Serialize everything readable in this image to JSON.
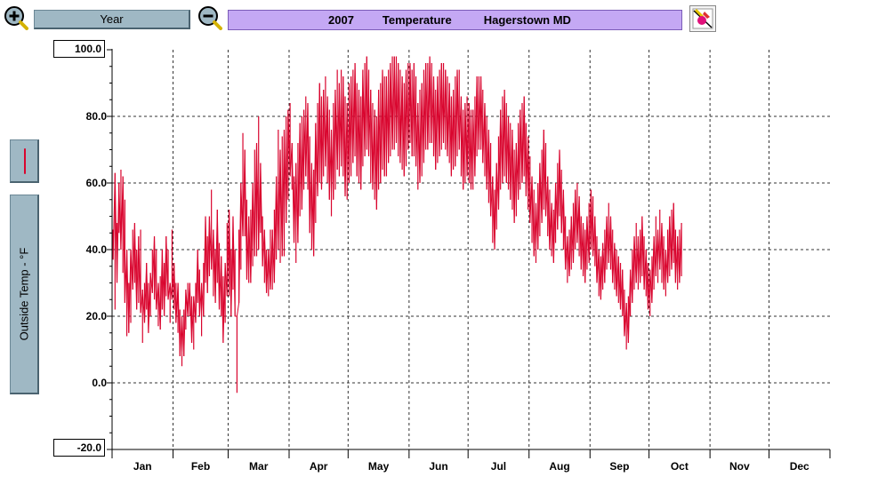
{
  "toolbar": {
    "range_label": "Year",
    "title_year": "2007",
    "title_metric": "Temperature",
    "title_location": "Hagerstown MD",
    "zoom_in_icon": "zoom-in-icon",
    "zoom_out_icon": "zoom-out-icon",
    "tool_icon": "graph-tool-icon"
  },
  "sidebar": {
    "axis_label": "Outside Temp - °F"
  },
  "colors": {
    "series": "#d9052e",
    "button_bg": "#9fb8c4",
    "title_bg": "#c4a8f4"
  },
  "chart_data": {
    "type": "line",
    "title": "2007 Temperature Hagerstown MD",
    "xlabel": "",
    "ylabel": "Outside Temp - °F",
    "ylim": [
      -20,
      100
    ],
    "ylim_labels": {
      "max": "100.0",
      "min": "-20.0"
    },
    "yticks": [
      "80.0",
      "60.0",
      "40.0",
      "20.0",
      "0.0"
    ],
    "ytick_values": [
      80,
      60,
      40,
      20,
      0
    ],
    "grid": true,
    "categories": [
      "Jan",
      "Feb",
      "Mar",
      "Apr",
      "May",
      "Jun",
      "Jul",
      "Aug",
      "Sep",
      "Oct",
      "Nov",
      "Dec"
    ],
    "series": [
      {
        "name": "",
        "daily_low": [
          37,
          22,
          30,
          45,
          40,
          33,
          24,
          14,
          15,
          18,
          28,
          30,
          22,
          24,
          21,
          12,
          18,
          22,
          15,
          20,
          27,
          25,
          22,
          17,
          16,
          22,
          20,
          26,
          25,
          18,
          25,
          22,
          18,
          15,
          8,
          5,
          8,
          16,
          20,
          20,
          12,
          10,
          18,
          24,
          20,
          14,
          20,
          30,
          27,
          32,
          34,
          26,
          24,
          30,
          22,
          20,
          12,
          18,
          26,
          26,
          20,
          28,
          20,
          -3,
          24,
          34,
          44,
          44,
          31,
          30,
          30,
          35,
          38,
          38,
          40,
          45,
          35,
          30,
          27,
          26,
          28,
          28,
          30,
          37,
          40,
          36,
          38,
          38,
          48,
          55,
          62,
          58,
          42,
          36,
          42,
          50,
          52,
          58,
          62,
          58,
          45,
          40,
          38,
          48,
          56,
          60,
          58,
          62,
          65,
          60,
          55,
          50,
          55,
          58,
          64,
          62,
          65,
          62,
          56,
          55,
          60,
          62,
          66,
          68,
          62,
          60,
          58,
          65,
          68,
          70,
          68,
          60,
          58,
          55,
          52,
          58,
          60,
          64,
          62,
          62,
          66,
          68,
          70,
          70,
          72,
          68,
          66,
          64,
          62,
          65,
          70,
          72,
          68,
          68,
          65,
          58,
          60,
          62,
          66,
          70,
          70,
          72,
          72,
          68,
          64,
          66,
          68,
          70,
          72,
          70,
          68,
          66,
          62,
          64,
          65,
          68,
          70,
          62,
          58,
          60,
          62,
          60,
          58,
          58,
          62,
          68,
          70,
          70,
          66,
          62,
          58,
          54,
          50,
          42,
          40,
          46,
          52,
          58,
          60,
          62,
          60,
          58,
          55,
          52,
          48,
          50,
          55,
          58,
          60,
          62,
          56,
          52,
          48,
          42,
          38,
          36,
          40,
          44,
          48,
          52,
          50,
          44,
          40,
          38,
          36,
          42,
          46,
          50,
          45,
          40,
          34,
          30,
          32,
          34,
          36,
          40,
          42,
          38,
          34,
          32,
          30,
          34,
          36,
          40,
          38,
          35,
          30,
          26,
          25,
          28,
          30,
          34,
          36,
          34,
          30,
          28,
          26,
          24,
          22,
          20,
          14,
          10,
          12,
          20,
          24,
          28,
          30,
          28,
          30,
          32,
          28,
          26,
          22,
          20,
          24,
          28,
          32,
          30,
          34,
          30,
          28,
          26,
          30,
          32,
          34,
          36,
          30,
          28,
          30,
          32
        ],
        "daily_high": [
          46,
          63,
          48,
          60,
          64,
          62,
          55,
          40,
          30,
          40,
          46,
          48,
          40,
          44,
          46,
          28,
          30,
          36,
          30,
          33,
          40,
          44,
          40,
          30,
          32,
          40,
          36,
          44,
          40,
          30,
          46,
          36,
          30,
          30,
          22,
          20,
          22,
          28,
          30,
          30,
          26,
          26,
          30,
          40,
          34,
          30,
          36,
          50,
          44,
          50,
          58,
          46,
          40,
          52,
          42,
          38,
          32,
          36,
          48,
          52,
          40,
          50,
          40,
          20,
          46,
          60,
          75,
          70,
          55,
          50,
          52,
          60,
          70,
          72,
          80,
          66,
          50,
          46,
          40,
          40,
          46,
          46,
          52,
          62,
          76,
          70,
          74,
          76,
          80,
          82,
          84,
          72,
          62,
          66,
          72,
          78,
          80,
          82,
          86,
          84,
          74,
          66,
          64,
          78,
          84,
          90,
          86,
          88,
          92,
          86,
          82,
          76,
          84,
          88,
          94,
          90,
          94,
          92,
          86,
          84,
          90,
          92,
          94,
          96,
          90,
          88,
          86,
          94,
          96,
          98,
          94,
          88,
          84,
          82,
          80,
          88,
          90,
          94,
          92,
          92,
          94,
          96,
          98,
          98,
          98,
          96,
          94,
          92,
          90,
          94,
          96,
          96,
          94,
          96,
          92,
          84,
          88,
          90,
          94,
          96,
          96,
          98,
          96,
          92,
          88,
          92,
          94,
          96,
          96,
          94,
          92,
          90,
          86,
          88,
          92,
          94,
          94,
          86,
          82,
          84,
          86,
          84,
          82,
          82,
          86,
          92,
          92,
          92,
          88,
          84,
          80,
          76,
          72,
          62,
          58,
          66,
          74,
          82,
          86,
          88,
          84,
          80,
          78,
          76,
          70,
          72,
          78,
          82,
          84,
          86,
          78,
          74,
          68,
          62,
          58,
          54,
          60,
          66,
          70,
          76,
          72,
          62,
          58,
          54,
          52,
          60,
          66,
          70,
          64,
          58,
          50,
          44,
          46,
          50,
          54,
          58,
          60,
          56,
          50,
          48,
          46,
          50,
          54,
          58,
          56,
          50,
          44,
          40,
          38,
          42,
          46,
          50,
          54,
          50,
          46,
          42,
          40,
          38,
          36,
          34,
          28,
          24,
          26,
          34,
          40,
          44,
          48,
          44,
          46,
          50,
          44,
          40,
          36,
          34,
          38,
          44,
          50,
          46,
          52,
          48,
          44,
          40,
          46,
          50,
          52,
          54,
          46,
          44,
          46,
          48
        ]
      }
    ]
  }
}
